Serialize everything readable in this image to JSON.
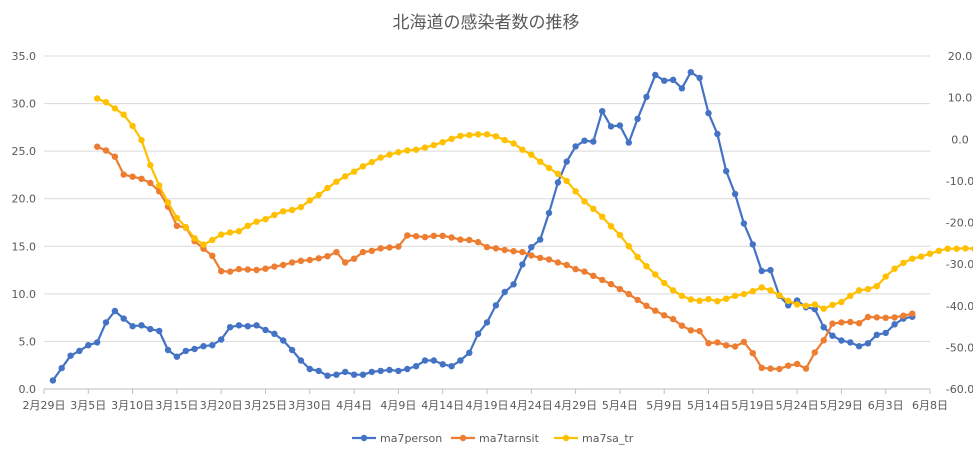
{
  "chart_data": {
    "type": "line",
    "title": "北海道の感染者数の推移",
    "x_ticks": [
      "2月29日",
      "3月5日",
      "3月10日",
      "3月15日",
      "3月20日",
      "3月25日",
      "3月30日",
      "4月4日",
      "4月9日",
      "4月14日",
      "4月19日",
      "4月24日",
      "4月29日",
      "5月4日",
      "5月9日",
      "5月14日",
      "5月19日",
      "5月24日",
      "5月29日",
      "6月3日",
      "6月8日"
    ],
    "x_start_day": 0,
    "x_step_days": 5,
    "y_left": {
      "ticks": [
        "0.0",
        "5.0",
        "10.0",
        "15.0",
        "20.0",
        "25.0",
        "30.0",
        "35.0"
      ],
      "range": [
        0,
        35
      ]
    },
    "y_right": {
      "ticks": [
        "-60.0",
        "-50.0",
        "-40.0",
        "-30.0",
        "-20.0",
        "-10.0",
        "0.0",
        "10.0",
        "20.0"
      ],
      "range": [
        -60,
        20
      ]
    },
    "grid": true,
    "legend_position": "bottom",
    "series": [
      {
        "name": "ma7person",
        "axis": "left",
        "color": "#4472C4",
        "start_day": 1,
        "values": [
          0.9,
          2.2,
          3.5,
          4.0,
          4.6,
          4.9,
          7.0,
          8.2,
          7.4,
          6.6,
          6.7,
          6.3,
          6.1,
          4.1,
          3.4,
          4.0,
          4.2,
          4.5,
          4.6,
          5.2,
          6.5,
          6.7,
          6.6,
          6.7,
          6.2,
          5.8,
          5.1,
          4.1,
          3.0,
          2.1,
          1.9,
          1.4,
          1.5,
          1.8,
          1.5,
          1.5,
          1.8,
          1.9,
          2.0,
          1.9,
          2.1,
          2.4,
          3.0,
          3.0,
          2.6,
          2.4,
          3.0,
          3.8,
          5.8,
          7.0,
          8.8,
          10.2,
          11.0,
          13.1,
          14.9,
          15.7,
          18.5,
          21.7,
          23.9,
          25.5,
          26.1,
          26.0,
          29.2,
          27.6,
          27.7,
          25.9,
          28.4,
          30.7,
          33.0,
          32.4,
          32.5,
          31.6,
          33.3,
          32.7,
          29.0,
          26.8,
          22.9,
          20.5,
          17.4,
          15.2,
          12.4,
          12.5,
          9.8,
          8.8,
          9.3,
          8.6,
          8.4,
          6.5,
          5.6,
          5.1,
          4.9,
          4.5,
          4.8,
          5.7,
          5.9,
          6.8,
          7.4,
          7.6
        ]
      },
      {
        "name": "ma7tarnsit",
        "axis": "right",
        "color": "#ED7D31",
        "start_day": 6,
        "values": [
          -1.8,
          -2.7,
          -4.2,
          -8.5,
          -9.0,
          -9.5,
          -10.5,
          -12.5,
          -16.2,
          -20.8,
          -21.2,
          -24.5,
          -26.3,
          -28.0,
          -31.7,
          -31.8,
          -31.2,
          -31.3,
          -31.4,
          -31.1,
          -30.6,
          -30.2,
          -29.6,
          -29.2,
          -29.0,
          -28.6,
          -28.1,
          -27.1,
          -29.6,
          -28.7,
          -27.1,
          -26.8,
          -26.2,
          -26.0,
          -25.8,
          -23.1,
          -23.3,
          -23.5,
          -23.2,
          -23.2,
          -23.6,
          -24.1,
          -24.2,
          -24.7,
          -25.9,
          -26.2,
          -26.6,
          -26.9,
          -27.1,
          -27.9,
          -28.5,
          -28.9,
          -29.6,
          -30.2,
          -31.2,
          -31.8,
          -32.8,
          -33.8,
          -34.8,
          -36.0,
          -37.2,
          -38.6,
          -40.0,
          -41.2,
          -42.3,
          -43.2,
          -44.8,
          -45.9,
          -46.1,
          -49.0,
          -48.8,
          -49.5,
          -49.8,
          -48.7,
          -51.4,
          -54.9,
          -55.1,
          -55.2,
          -54.4,
          -54.0,
          -55.1,
          -51.2,
          -48.3,
          -44.3,
          -44.0,
          -43.9,
          -44.2,
          -42.7,
          -42.8,
          -42.9,
          -42.8,
          -42.4,
          -41.9
        ]
      },
      {
        "name": "ma7sa_tr",
        "axis": "right",
        "color": "#FFC000",
        "start_day": 6,
        "values": [
          9.8,
          8.9,
          7.4,
          5.9,
          3.2,
          -0.2,
          -6.2,
          -11.1,
          -15.2,
          -18.9,
          -21.1,
          -23.8,
          -25.3,
          -24.2,
          -22.9,
          -22.4,
          -22.1,
          -20.8,
          -19.8,
          -19.2,
          -18.2,
          -17.3,
          -17.0,
          -16.3,
          -14.7,
          -13.4,
          -11.7,
          -10.2,
          -8.9,
          -7.8,
          -6.5,
          -5.5,
          -4.4,
          -3.7,
          -3.1,
          -2.7,
          -2.5,
          -2.0,
          -1.4,
          -0.7,
          0.1,
          0.8,
          1.0,
          1.2,
          1.2,
          0.7,
          -0.2,
          -1.0,
          -2.5,
          -3.7,
          -5.4,
          -6.9,
          -8.3,
          -10.0,
          -12.5,
          -14.9,
          -16.7,
          -18.6,
          -20.9,
          -23.0,
          -25.7,
          -28.3,
          -30.5,
          -32.5,
          -34.5,
          -36.3,
          -37.6,
          -38.5,
          -38.8,
          -38.4,
          -38.9,
          -38.3,
          -37.6,
          -37.2,
          -36.5,
          -35.6,
          -36.3,
          -37.5,
          -38.8,
          -39.7,
          -40.0,
          -39.7,
          -40.7,
          -39.8,
          -39.1,
          -37.6,
          -36.3,
          -36.0,
          -35.3,
          -33.0,
          -31.1,
          -29.7,
          -28.7,
          -28.2,
          -27.5,
          -26.8,
          -26.3,
          -26.3,
          -26.2,
          -26.3
        ]
      }
    ]
  }
}
